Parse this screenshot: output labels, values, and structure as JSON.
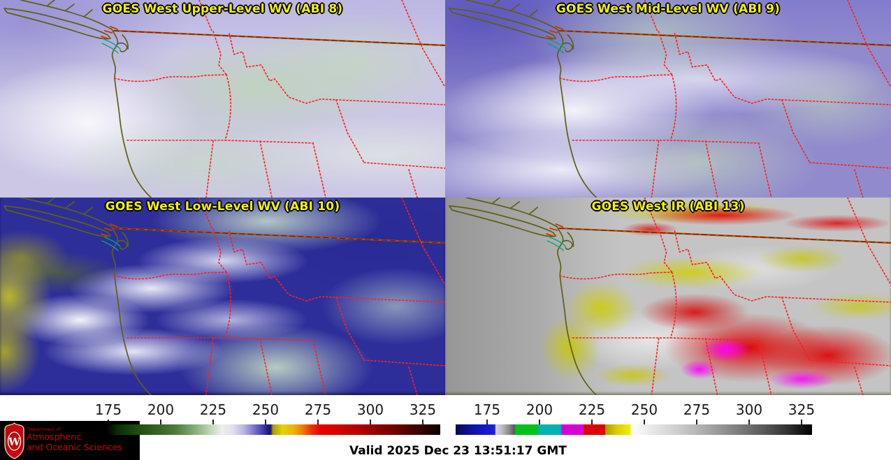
{
  "panels": [
    {
      "id": "upper_wv",
      "title": "GOES West Upper-Level WV (ABI 8)"
    },
    {
      "id": "mid_wv",
      "title": "GOES West Mid-Level WV (ABI 9)"
    },
    {
      "id": "low_wv",
      "title": "GOES West Low-Level WV (ABI 10)"
    },
    {
      "id": "ir",
      "title": "GOES West IR (ABI 13)"
    }
  ],
  "colorbar_left": {
    "product": "water-vapor",
    "ticks": [
      "175",
      "200",
      "225",
      "250",
      "275",
      "300",
      "325"
    ]
  },
  "colorbar_right": {
    "product": "infrared",
    "ticks": [
      "175",
      "200",
      "225",
      "250",
      "275",
      "300",
      "325"
    ]
  },
  "footer": {
    "valid": "Valid 2025 Dec 23 13:51:17 GMT"
  },
  "logo": {
    "dept": "Department of",
    "name1": "Atmospheric",
    "name2": "and Oceanic Sciences",
    "monogram": "W"
  },
  "colors": {
    "title_yellow": "#f2f200",
    "state_border_red": "#ff1e1e",
    "canada_border_orange": "#a85400",
    "coastline_olive": "#5f5f15",
    "water_teal": "#00a878",
    "logo_red": "#c5050c",
    "tick_label": "#1a1a1a"
  }
}
